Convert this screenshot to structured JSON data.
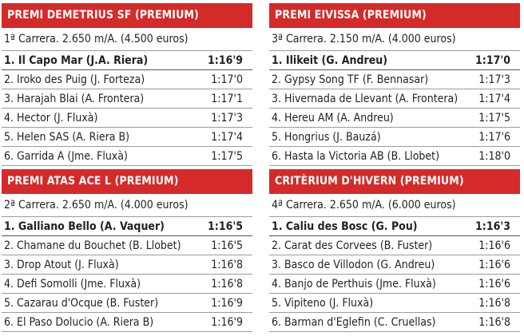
{
  "races": [
    {
      "title": "PREMI DEMETRIUS SF (PREMIUM)",
      "info": "1ª Carrera. 2.650 m/A. (4.500 euros)",
      "results": [
        {
          "name": "1. Il Capo Mar (J.A. Riera)",
          "time": "1:16'9"
        },
        {
          "name": "2. Iroko des Puig (J. Forteza)",
          "time": "1:17'0"
        },
        {
          "name": "3. Harajah Blai (A. Frontera)",
          "time": "1:17'1"
        },
        {
          "name": "4. Hector (J. Fluxà)",
          "time": "1:17'3"
        },
        {
          "name": "5. Helen SAS (A. Riera B)",
          "time": "1:17'4"
        },
        {
          "name": "6. Garrida A (Jme. Fluxà)",
          "time": "1:17'5"
        }
      ]
    },
    {
      "title": "PREMI EIVISSA (PREMIUM)",
      "info": "3ª Carrera. 2.150 m/A. (4.000 euros)",
      "results": [
        {
          "name": "1. Ilikeit (G. Andreu)",
          "time": "1:17'0"
        },
        {
          "name": "2. Gypsy Song TF (F. Bennasar)",
          "time": "1:17'3"
        },
        {
          "name": "3. Hivernada de Llevant (A. Frontera)",
          "time": "1:17'4"
        },
        {
          "name": "4. Hereu AM (A. Andreu)",
          "time": "1:17'5"
        },
        {
          "name": "5. Hongrius (J. Bauzá)",
          "time": "1:17'6"
        },
        {
          "name": "6. Hasta la Victoria AB (B. Llobet)",
          "time": "1:18'0"
        }
      ]
    },
    {
      "title": "PREMI ATAS ACE L (PREMIUM)",
      "info": "2ª Carrera. 2.650 m/A. (4.000 euros)",
      "results": [
        {
          "name": "1. Galliano Bello (A. Vaquer)",
          "time": "1:16'5"
        },
        {
          "name": "2. Chamane du Bouchet (B. Llobet)",
          "time": "1:16'5"
        },
        {
          "name": "3. Drop Atout (J. Fluxà)",
          "time": "1:16'8"
        },
        {
          "name": "4. Defi Somolli (Jme. Fluxà)",
          "time": "1:16'8"
        },
        {
          "name": "5. Cazarau d'Ocque (B. Fuster)",
          "time": "1:16'9"
        },
        {
          "name": "6. El Paso Dolucio (A. Riera B)",
          "time": "1:16'9"
        }
      ]
    },
    {
      "title": "CRITÈRIUM D'HIVERN (PREMIUM)",
      "info": "4ª Carrera. 2.650 m/A. (6.000 euros)",
      "results": [
        {
          "name": "1. Caliu des Bosc (G. Pou)",
          "time": "1:16'3"
        },
        {
          "name": "2. Carat des Corvees (B. Fuster)",
          "time": "1:16'6"
        },
        {
          "name": "3. Basco de Villodon (G. Andreu)",
          "time": "1:16'6"
        },
        {
          "name": "4. Banjo de Perthuis (Jme. Fluxà)",
          "time": "1:16'6"
        },
        {
          "name": "5. Vipiteno (J. Fluxà)",
          "time": "1:16'8"
        },
        {
          "name": "6. Barman d'Eglefin (C. Cruellas)",
          "time": "1:16'8"
        }
      ]
    }
  ],
  "colors": {
    "header_bg": "#d42a2a",
    "header_text": "#ffffff",
    "text": "#231f20",
    "rule": "#9b9b9b"
  }
}
